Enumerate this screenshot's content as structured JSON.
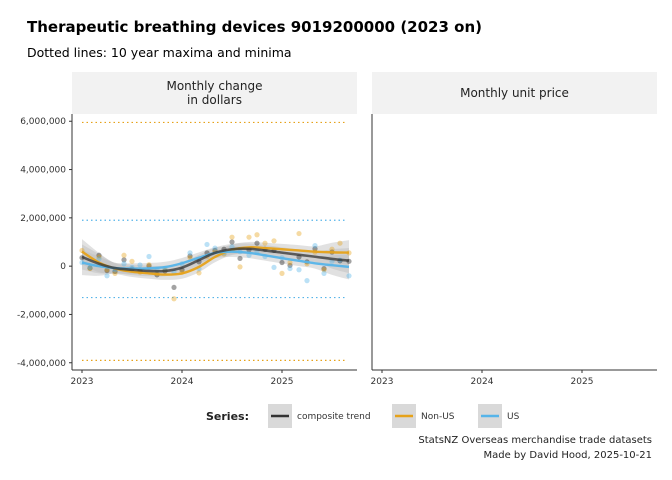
{
  "header": {
    "title": "Therapeutic breathing devices 9019200000 (2023 on)",
    "subtitle": "Dotted lines: 10 year maxima and minima"
  },
  "caption": {
    "line1": "StatsNZ Overseas merchandise trade datasets",
    "line2": "Made by David Hood, 2025-10-21"
  },
  "colors": {
    "composite": "#333333",
    "nonus": "#E6A21A",
    "us": "#56B4E9",
    "band": "#bdbdbd",
    "strip": "#f2f2f2"
  },
  "chart_data": [
    {
      "type": "scatter",
      "panel_title_lines": [
        "Monthly change",
        "in dollars"
      ],
      "x_ticks": [
        "2023",
        "2024",
        "2025"
      ],
      "y_ticks": [
        "-4,000,000",
        "-2,000,000",
        "0",
        "2,000,000",
        "4,000,000",
        "6,000,000"
      ],
      "ylim": [
        -4300000,
        6300000
      ],
      "xlim": [
        2022.9,
        2025.75
      ],
      "hlines": [
        {
          "series": "Non-US",
          "value": 5950000
        },
        {
          "series": "US",
          "value": 1900000
        },
        {
          "series": "US",
          "value": -1300000
        },
        {
          "series": "Non-US",
          "value": -3900000
        }
      ],
      "series": [
        {
          "name": "composite trend",
          "points": [
            [
              2023.0,
              350000
            ],
            [
              2023.08,
              -80000
            ],
            [
              2023.17,
              450000
            ],
            [
              2023.25,
              -180000
            ],
            [
              2023.33,
              -220000
            ],
            [
              2023.42,
              260000
            ],
            [
              2023.5,
              -120000
            ],
            [
              2023.58,
              -200000
            ],
            [
              2023.67,
              10000
            ],
            [
              2023.75,
              -360000
            ],
            [
              2023.83,
              -200000
            ],
            [
              2023.92,
              -880000
            ],
            [
              2024.0,
              -150000
            ],
            [
              2024.08,
              420000
            ],
            [
              2024.17,
              180000
            ],
            [
              2024.25,
              550000
            ],
            [
              2024.33,
              650000
            ],
            [
              2024.42,
              700000
            ],
            [
              2024.5,
              1000000
            ],
            [
              2024.58,
              320000
            ],
            [
              2024.67,
              680000
            ],
            [
              2024.75,
              950000
            ],
            [
              2024.83,
              700000
            ],
            [
              2024.92,
              650000
            ],
            [
              2025.0,
              150000
            ],
            [
              2025.08,
              30000
            ],
            [
              2025.17,
              380000
            ],
            [
              2025.25,
              180000
            ],
            [
              2025.33,
              720000
            ],
            [
              2025.42,
              -100000
            ],
            [
              2025.5,
              580000
            ],
            [
              2025.58,
              220000
            ],
            [
              2025.67,
              200000
            ]
          ],
          "trend": [
            [
              2023.0,
              380000
            ],
            [
              2023.17,
              100000
            ],
            [
              2023.33,
              -80000
            ],
            [
              2023.5,
              -150000
            ],
            [
              2023.67,
              -200000
            ],
            [
              2023.83,
              -200000
            ],
            [
              2024.0,
              -60000
            ],
            [
              2024.17,
              250000
            ],
            [
              2024.33,
              550000
            ],
            [
              2024.5,
              700000
            ],
            [
              2024.67,
              720000
            ],
            [
              2024.83,
              650000
            ],
            [
              2025.0,
              560000
            ],
            [
              2025.17,
              470000
            ],
            [
              2025.33,
              390000
            ],
            [
              2025.5,
              300000
            ],
            [
              2025.67,
              230000
            ]
          ]
        },
        {
          "name": "Non-US",
          "points": [
            [
              2023.0,
              650000
            ],
            [
              2023.08,
              -100000
            ],
            [
              2023.17,
              380000
            ],
            [
              2023.25,
              -150000
            ],
            [
              2023.33,
              -300000
            ],
            [
              2023.42,
              450000
            ],
            [
              2023.5,
              200000
            ],
            [
              2023.58,
              -250000
            ],
            [
              2023.67,
              60000
            ],
            [
              2023.75,
              -300000
            ],
            [
              2023.83,
              -150000
            ],
            [
              2023.92,
              -1350000
            ],
            [
              2024.0,
              -250000
            ],
            [
              2024.08,
              350000
            ],
            [
              2024.17,
              -280000
            ],
            [
              2024.25,
              400000
            ],
            [
              2024.33,
              600000
            ],
            [
              2024.42,
              500000
            ],
            [
              2024.5,
              1200000
            ],
            [
              2024.58,
              -30000
            ],
            [
              2024.67,
              1200000
            ],
            [
              2024.75,
              1300000
            ],
            [
              2024.83,
              950000
            ],
            [
              2024.92,
              1050000
            ],
            [
              2025.0,
              -300000
            ],
            [
              2025.08,
              150000
            ],
            [
              2025.17,
              1350000
            ],
            [
              2025.25,
              100000
            ],
            [
              2025.33,
              580000
            ],
            [
              2025.42,
              -150000
            ],
            [
              2025.5,
              700000
            ],
            [
              2025.58,
              950000
            ],
            [
              2025.67,
              550000
            ]
          ],
          "trend": [
            [
              2023.0,
              600000
            ],
            [
              2023.17,
              150000
            ],
            [
              2023.33,
              -100000
            ],
            [
              2023.5,
              -230000
            ],
            [
              2023.67,
              -300000
            ],
            [
              2023.83,
              -350000
            ],
            [
              2024.0,
              -300000
            ],
            [
              2024.17,
              -30000
            ],
            [
              2024.33,
              380000
            ],
            [
              2024.5,
              680000
            ],
            [
              2024.67,
              780000
            ],
            [
              2024.83,
              750000
            ],
            [
              2025.0,
              700000
            ],
            [
              2025.17,
              650000
            ],
            [
              2025.33,
              600000
            ],
            [
              2025.5,
              570000
            ],
            [
              2025.67,
              560000
            ]
          ]
        },
        {
          "name": "US",
          "points": [
            [
              2023.0,
              150000
            ],
            [
              2023.08,
              -50000
            ],
            [
              2023.17,
              300000
            ],
            [
              2023.25,
              -400000
            ],
            [
              2023.33,
              -150000
            ],
            [
              2023.42,
              100000
            ],
            [
              2023.5,
              -50000
            ],
            [
              2023.58,
              50000
            ],
            [
              2023.67,
              400000
            ],
            [
              2023.75,
              -150000
            ],
            [
              2023.83,
              -100000
            ],
            [
              2023.92,
              -250000
            ],
            [
              2024.0,
              100000
            ],
            [
              2024.08,
              550000
            ],
            [
              2024.17,
              -100000
            ],
            [
              2024.25,
              900000
            ],
            [
              2024.33,
              750000
            ],
            [
              2024.42,
              550000
            ],
            [
              2024.5,
              800000
            ],
            [
              2024.58,
              600000
            ],
            [
              2024.67,
              450000
            ],
            [
              2024.75,
              600000
            ],
            [
              2024.83,
              400000
            ],
            [
              2024.92,
              -50000
            ],
            [
              2025.0,
              350000
            ],
            [
              2025.08,
              -100000
            ],
            [
              2025.17,
              -150000
            ],
            [
              2025.25,
              -600000
            ],
            [
              2025.33,
              850000
            ],
            [
              2025.42,
              -300000
            ],
            [
              2025.5,
              200000
            ],
            [
              2025.58,
              250000
            ],
            [
              2025.67,
              -400000
            ]
          ],
          "trend": [
            [
              2023.0,
              150000
            ],
            [
              2023.17,
              0
            ],
            [
              2023.33,
              -80000
            ],
            [
              2023.5,
              -100000
            ],
            [
              2023.67,
              -90000
            ],
            [
              2023.83,
              -40000
            ],
            [
              2024.0,
              120000
            ],
            [
              2024.17,
              350000
            ],
            [
              2024.33,
              550000
            ],
            [
              2024.5,
              600000
            ],
            [
              2024.67,
              550000
            ],
            [
              2024.83,
              450000
            ],
            [
              2025.0,
              330000
            ],
            [
              2025.17,
              220000
            ],
            [
              2025.33,
              120000
            ],
            [
              2025.5,
              40000
            ],
            [
              2025.67,
              -30000
            ]
          ]
        }
      ]
    },
    {
      "type": "scatter",
      "panel_title_lines": [
        "Monthly unit price"
      ],
      "x_ticks": [
        "2023",
        "2024",
        "2025"
      ],
      "series": []
    }
  ],
  "legend": {
    "title": "Series:",
    "items": [
      {
        "label": "composite trend",
        "color": "#333333"
      },
      {
        "label": "Non-US",
        "color": "#E6A21A"
      },
      {
        "label": "US",
        "color": "#56B4E9"
      }
    ]
  }
}
